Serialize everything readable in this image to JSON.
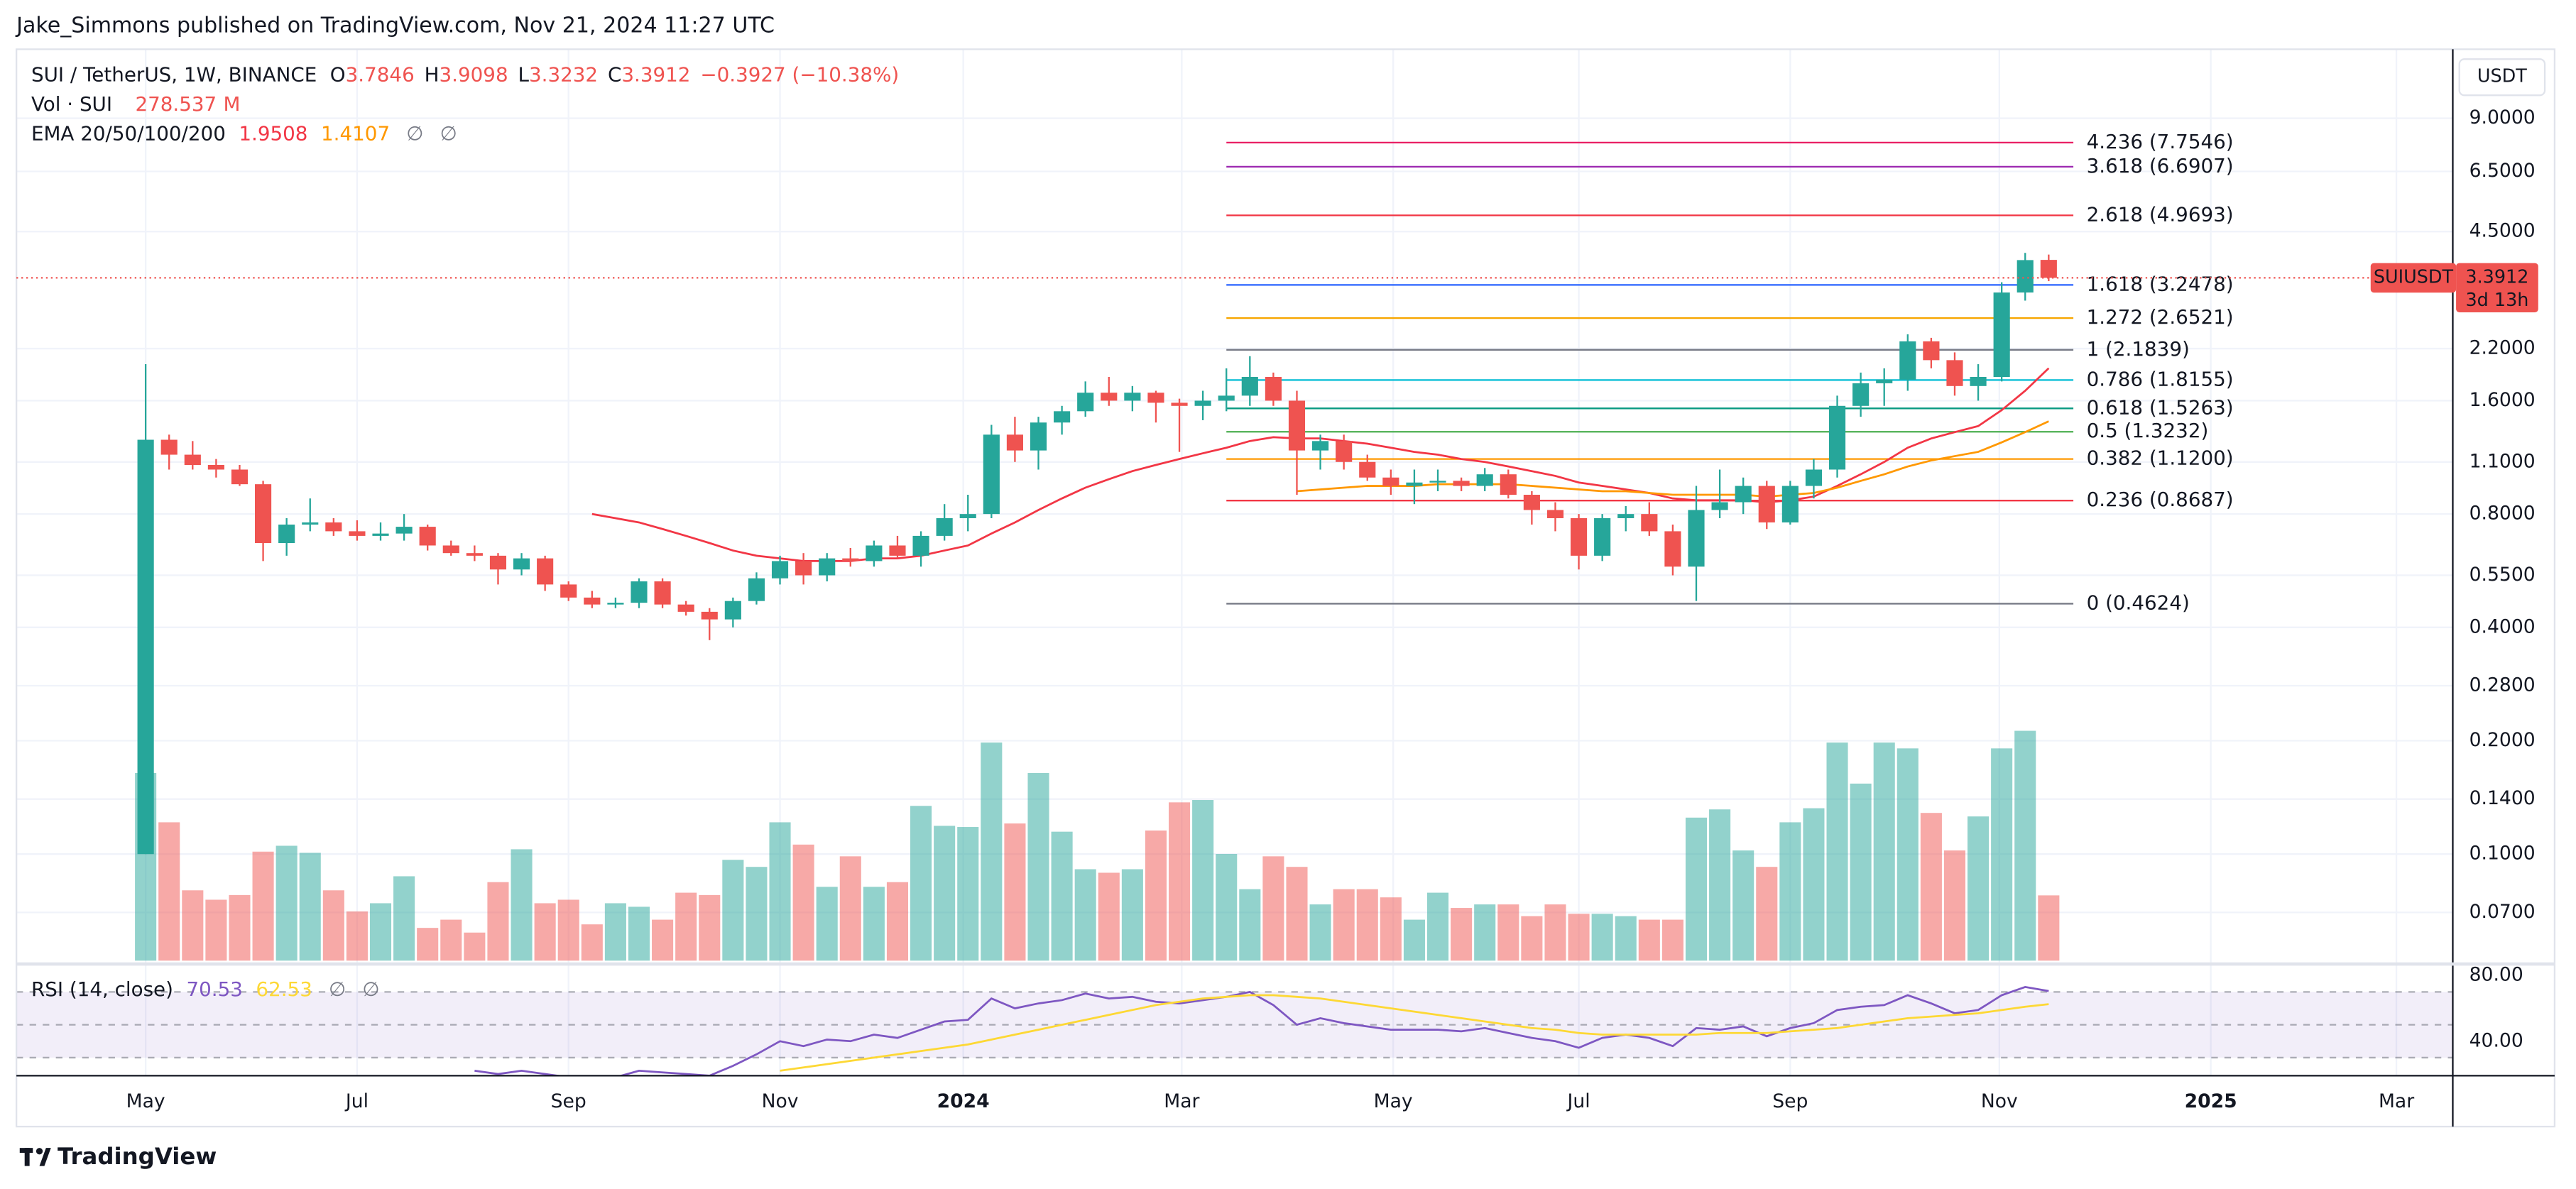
{
  "chart_data": {
    "type": "candlestick",
    "publisher": "Jake_Simmons published on TradingView.com, Nov 21, 2024 11:27 UTC",
    "symbol": "SUI / TetherUS, 1W, BINANCE",
    "ohlc_keys": [
      "O",
      "H",
      "L",
      "C"
    ],
    "change": "−0.3927 (−10.38%)",
    "currency": "USDT",
    "ticker": "SUIUSDT",
    "countdown": "3d 13h",
    "brand": "TradingView",
    "up_color": "#26a69a",
    "down_color": "#ef5350",
    "log_scale": true,
    "grid": true,
    "ylim": [
      0.0521,
      13.72
    ],
    "yticks": [
      {
        "value": 9,
        "label": "9.0000"
      },
      {
        "value": 6.5,
        "label": "6.5000"
      },
      {
        "value": 4.5,
        "label": "4.5000"
      },
      {
        "value": 2.2,
        "label": "2.2000"
      },
      {
        "value": 1.6,
        "label": "1.6000"
      },
      {
        "value": 1.1,
        "label": "1.1000"
      },
      {
        "value": 0.8,
        "label": "0.8000"
      },
      {
        "value": 0.55,
        "label": "0.5500"
      },
      {
        "value": 0.4,
        "label": "0.4000"
      },
      {
        "value": 0.28,
        "label": "0.2800"
      },
      {
        "value": 0.2,
        "label": "0.2000"
      },
      {
        "value": 0.14,
        "label": "0.1400"
      },
      {
        "value": 0.1,
        "label": "0.1000"
      },
      {
        "value": 0.07,
        "label": "0.0700"
      }
    ],
    "xlim": [
      -5.5,
      98.2
    ],
    "xticks": [
      {
        "value": 0,
        "label": "May"
      },
      {
        "value": 9,
        "label": "Jul"
      },
      {
        "value": 18,
        "label": "Sep"
      },
      {
        "value": 27,
        "label": "Nov"
      },
      {
        "value": 34.8,
        "label": "2024"
      },
      {
        "value": 44.1,
        "label": "Mar"
      },
      {
        "value": 53.1,
        "label": "May"
      },
      {
        "value": 61,
        "label": "Jul"
      },
      {
        "value": 70,
        "label": "Sep"
      },
      {
        "value": 78.9,
        "label": "Nov"
      },
      {
        "value": 87.9,
        "label": "2025"
      },
      {
        "value": 95.8,
        "label": "Mar"
      }
    ],
    "ohlc": [
      [
        0.1,
        2.0,
        0.1,
        1.26
      ],
      [
        1.26,
        1.3,
        1.05,
        1.15
      ],
      [
        1.15,
        1.25,
        1.05,
        1.08
      ],
      [
        1.08,
        1.12,
        1.0,
        1.05
      ],
      [
        1.05,
        1.08,
        0.95,
        0.96
      ],
      [
        0.96,
        0.98,
        0.6,
        0.67
      ],
      [
        0.67,
        0.78,
        0.62,
        0.75
      ],
      [
        0.75,
        0.88,
        0.72,
        0.76
      ],
      [
        0.76,
        0.78,
        0.7,
        0.72
      ],
      [
        0.72,
        0.77,
        0.68,
        0.7
      ],
      [
        0.7,
        0.76,
        0.68,
        0.71
      ],
      [
        0.71,
        0.8,
        0.68,
        0.74
      ],
      [
        0.74,
        0.75,
        0.64,
        0.66
      ],
      [
        0.66,
        0.68,
        0.62,
        0.63
      ],
      [
        0.63,
        0.66,
        0.6,
        0.62
      ],
      [
        0.62,
        0.63,
        0.52,
        0.57
      ],
      [
        0.57,
        0.63,
        0.55,
        0.61
      ],
      [
        0.61,
        0.62,
        0.5,
        0.52
      ],
      [
        0.52,
        0.53,
        0.47,
        0.48
      ],
      [
        0.48,
        0.5,
        0.45,
        0.46
      ],
      [
        0.46,
        0.48,
        0.45,
        0.465
      ],
      [
        0.465,
        0.54,
        0.45,
        0.53
      ],
      [
        0.53,
        0.54,
        0.45,
        0.46
      ],
      [
        0.46,
        0.47,
        0.43,
        0.44
      ],
      [
        0.44,
        0.45,
        0.37,
        0.42
      ],
      [
        0.42,
        0.48,
        0.4,
        0.47
      ],
      [
        0.47,
        0.56,
        0.46,
        0.54
      ],
      [
        0.54,
        0.62,
        0.52,
        0.6
      ],
      [
        0.6,
        0.63,
        0.52,
        0.55
      ],
      [
        0.55,
        0.63,
        0.53,
        0.61
      ],
      [
        0.61,
        0.65,
        0.58,
        0.6
      ],
      [
        0.6,
        0.68,
        0.58,
        0.66
      ],
      [
        0.66,
        0.7,
        0.61,
        0.62
      ],
      [
        0.62,
        0.72,
        0.58,
        0.7
      ],
      [
        0.7,
        0.85,
        0.68,
        0.78
      ],
      [
        0.78,
        0.9,
        0.72,
        0.8
      ],
      [
        0.8,
        1.38,
        0.78,
        1.3
      ],
      [
        1.3,
        1.45,
        1.1,
        1.18
      ],
      [
        1.18,
        1.45,
        1.05,
        1.4
      ],
      [
        1.4,
        1.55,
        1.3,
        1.5
      ],
      [
        1.5,
        1.8,
        1.45,
        1.68
      ],
      [
        1.68,
        1.85,
        1.55,
        1.6
      ],
      [
        1.6,
        1.75,
        1.5,
        1.68
      ],
      [
        1.68,
        1.7,
        1.4,
        1.58
      ],
      [
        1.58,
        1.62,
        1.17,
        1.55
      ],
      [
        1.55,
        1.7,
        1.42,
        1.6
      ],
      [
        1.6,
        1.95,
        1.5,
        1.65
      ],
      [
        1.65,
        2.1,
        1.55,
        1.85
      ],
      [
        1.85,
        1.9,
        1.55,
        1.6
      ],
      [
        1.6,
        1.7,
        0.9,
        1.18
      ],
      [
        1.18,
        1.3,
        1.05,
        1.25
      ],
      [
        1.25,
        1.3,
        1.05,
        1.1
      ],
      [
        1.1,
        1.15,
        0.98,
        1.0
      ],
      [
        1.0,
        1.05,
        0.9,
        0.95
      ],
      [
        0.95,
        1.05,
        0.85,
        0.97
      ],
      [
        0.97,
        1.05,
        0.92,
        0.98
      ],
      [
        0.98,
        1.0,
        0.92,
        0.95
      ],
      [
        0.95,
        1.06,
        0.92,
        1.02
      ],
      [
        1.02,
        1.05,
        0.88,
        0.9
      ],
      [
        0.9,
        0.92,
        0.75,
        0.82
      ],
      [
        0.82,
        0.86,
        0.72,
        0.78
      ],
      [
        0.78,
        0.8,
        0.57,
        0.62
      ],
      [
        0.62,
        0.8,
        0.6,
        0.78
      ],
      [
        0.78,
        0.84,
        0.72,
        0.8
      ],
      [
        0.8,
        0.86,
        0.7,
        0.72
      ],
      [
        0.72,
        0.75,
        0.55,
        0.58
      ],
      [
        0.58,
        0.95,
        0.47,
        0.82
      ],
      [
        0.82,
        1.05,
        0.78,
        0.86
      ],
      [
        0.86,
        1.0,
        0.8,
        0.95
      ],
      [
        0.95,
        0.98,
        0.73,
        0.76
      ],
      [
        0.76,
        0.98,
        0.75,
        0.95
      ],
      [
        0.95,
        1.12,
        0.88,
        1.05
      ],
      [
        1.05,
        1.65,
        1.0,
        1.55
      ],
      [
        1.55,
        1.9,
        1.45,
        1.78
      ],
      [
        1.78,
        1.95,
        1.55,
        1.82
      ],
      [
        1.82,
        2.4,
        1.7,
        2.3
      ],
      [
        2.3,
        2.35,
        1.95,
        2.05
      ],
      [
        2.05,
        2.15,
        1.65,
        1.75
      ],
      [
        1.75,
        2.0,
        1.6,
        1.85
      ],
      [
        1.85,
        3.3,
        1.8,
        3.1
      ],
      [
        3.1,
        3.95,
        2.95,
        3.78
      ],
      [
        3.7846,
        3.9098,
        3.3232,
        3.3912
      ]
    ],
    "volume": {
      "name": "Vol · SUI",
      "unit": "M",
      "values": [
        800,
        590,
        300,
        260,
        280,
        465,
        490,
        460,
        300,
        210,
        245,
        360,
        140,
        175,
        120,
        335,
        475,
        245,
        260,
        155,
        245,
        230,
        175,
        290,
        280,
        430,
        400,
        590,
        495,
        315,
        445,
        315,
        335,
        660,
        575,
        570,
        930,
        585,
        800,
        550,
        390,
        375,
        390,
        555,
        675,
        685,
        455,
        305,
        445,
        400,
        240,
        305,
        305,
        270,
        175,
        290,
        225,
        240,
        240,
        190,
        240,
        200,
        200,
        190,
        175,
        175,
        610,
        645,
        470,
        400,
        590,
        650,
        930,
        755,
        930,
        905,
        630,
        470,
        615,
        905,
        980,
        278.537
      ]
    },
    "ema": {
      "name": "EMA 20/50/100/200",
      "empty": [
        "∅",
        "∅"
      ],
      "series": [
        {
          "color": "#f23645",
          "values": [
            null,
            null,
            null,
            null,
            null,
            null,
            null,
            null,
            null,
            null,
            null,
            null,
            null,
            null,
            null,
            null,
            null,
            null,
            null,
            0.8,
            0.78,
            0.76,
            0.73,
            0.7,
            0.67,
            0.64,
            0.62,
            0.61,
            0.6,
            0.6,
            0.6,
            0.61,
            0.61,
            0.62,
            0.64,
            0.66,
            0.71,
            0.76,
            0.82,
            0.88,
            0.94,
            0.99,
            1.04,
            1.08,
            1.12,
            1.16,
            1.2,
            1.25,
            1.28,
            1.27,
            1.27,
            1.25,
            1.23,
            1.2,
            1.17,
            1.15,
            1.12,
            1.1,
            1.07,
            1.04,
            1.01,
            0.97,
            0.95,
            0.93,
            0.91,
            0.88,
            0.87,
            0.87,
            0.87,
            0.86,
            0.87,
            0.89,
            0.95,
            1.02,
            1.1,
            1.2,
            1.27,
            1.32,
            1.37,
            1.51,
            1.7,
            1.9508
          ]
        },
        {
          "color": "#ff9800",
          "values": [
            null,
            null,
            null,
            null,
            null,
            null,
            null,
            null,
            null,
            null,
            null,
            null,
            null,
            null,
            null,
            null,
            null,
            null,
            null,
            null,
            null,
            null,
            null,
            null,
            null,
            null,
            null,
            null,
            null,
            null,
            null,
            null,
            null,
            null,
            null,
            null,
            null,
            null,
            null,
            null,
            null,
            null,
            null,
            null,
            null,
            null,
            null,
            null,
            null,
            0.92,
            0.93,
            0.94,
            0.95,
            0.95,
            0.95,
            0.96,
            0.96,
            0.96,
            0.96,
            0.95,
            0.94,
            0.93,
            0.92,
            0.92,
            0.91,
            0.9,
            0.9,
            0.9,
            0.9,
            0.89,
            0.9,
            0.91,
            0.94,
            0.98,
            1.02,
            1.07,
            1.11,
            1.14,
            1.17,
            1.24,
            1.32,
            1.4107
          ]
        }
      ]
    },
    "rsi": {
      "name": "RSI (14, close)",
      "empty": [
        "∅",
        "∅"
      ],
      "ylim": [
        19,
        86
      ],
      "yticks": [
        {
          "value": 80,
          "label": "80.00"
        },
        {
          "value": 40,
          "label": "40.00"
        }
      ],
      "levels": [
        70,
        50,
        30
      ],
      "series": [
        {
          "color": "#7e57c2",
          "values": [
            null,
            null,
            null,
            null,
            null,
            null,
            null,
            null,
            null,
            null,
            null,
            null,
            null,
            null,
            22,
            20,
            22,
            20,
            18,
            17,
            18,
            22,
            21,
            20,
            19,
            25,
            32,
            40,
            37,
            41,
            40,
            44,
            42,
            47,
            52,
            53,
            66,
            60,
            63,
            65,
            69,
            66,
            67,
            64,
            63,
            65,
            67,
            70,
            62,
            50,
            54,
            51,
            49,
            47,
            47,
            47,
            46,
            48,
            45,
            42,
            40,
            36,
            42,
            44,
            42,
            37,
            48,
            47,
            49,
            43,
            48,
            51,
            59,
            61,
            62,
            68,
            63,
            57,
            59,
            68,
            73,
            70.53
          ]
        },
        {
          "color": "#fdd835",
          "values": [
            null,
            null,
            null,
            null,
            null,
            null,
            null,
            null,
            null,
            null,
            null,
            null,
            null,
            null,
            null,
            null,
            null,
            null,
            null,
            null,
            null,
            null,
            null,
            null,
            null,
            null,
            null,
            22,
            24,
            26,
            28,
            30,
            32,
            34,
            36,
            38,
            41,
            44,
            47,
            50,
            53,
            56,
            59,
            62,
            64,
            66,
            67,
            68,
            68,
            67,
            66,
            64,
            62,
            60,
            58,
            56,
            54,
            52,
            50,
            48,
            47,
            45,
            44,
            44,
            44,
            44,
            44,
            45,
            45,
            45,
            46,
            47,
            48,
            50,
            52,
            54,
            55,
            56,
            57,
            59,
            61,
            62.53
          ]
        }
      ]
    },
    "fib": [
      {
        "value": 7.7546,
        "label": "4.236 (7.7546)",
        "color": "#e91e63"
      },
      {
        "value": 6.6907,
        "label": "3.618 (6.6907)",
        "color": "#9c27b0"
      },
      {
        "value": 4.9693,
        "label": "2.618 (4.9693)",
        "color": "#f23645"
      },
      {
        "value": 3.2478,
        "label": "1.618 (3.2478)",
        "color": "#2962ff"
      },
      {
        "value": 2.6521,
        "label": "1.272 (2.6521)",
        "color": "#f7a600"
      },
      {
        "value": 2.1839,
        "label": "1 (2.1839)",
        "color": "#787b86"
      },
      {
        "value": 1.8155,
        "label": "0.786 (1.8155)",
        "color": "#00bcd4"
      },
      {
        "value": 1.5263,
        "label": "0.618 (1.5263)",
        "color": "#089981"
      },
      {
        "value": 1.3232,
        "label": "0.5 (1.3232)",
        "color": "#4caf50"
      },
      {
        "value": 1.12,
        "label": "0.382 (1.1200)",
        "color": "#ff9800"
      },
      {
        "value": 0.8687,
        "label": "0.236 (0.8687)",
        "color": "#f23645"
      },
      {
        "value": 0.4624,
        "label": "0 (0.4624)",
        "color": "#787b86"
      }
    ]
  }
}
